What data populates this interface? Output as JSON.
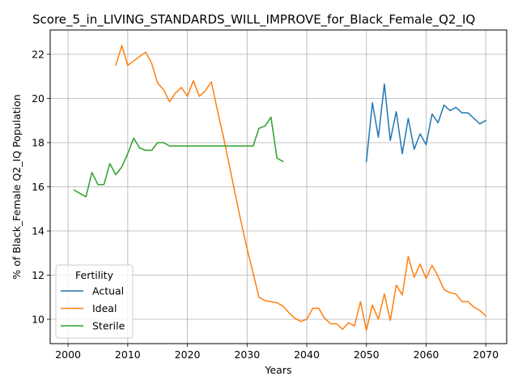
{
  "chart_data": {
    "type": "line",
    "title": "Score_5_in_LIVING_STANDARDS_WILL_IMPROVE_for_Black_Female_Q2_IQ",
    "xlabel": "Years",
    "ylabel": "% of Black_Female Q2_IQ Population",
    "xlim": [
      1997,
      2073.5
    ],
    "ylim": [
      8.9,
      23.1
    ],
    "xticks": [
      2000,
      2010,
      2020,
      2030,
      2040,
      2050,
      2060,
      2070
    ],
    "yticks": [
      10,
      12,
      14,
      16,
      18,
      20,
      22
    ],
    "grid": true,
    "legend": {
      "title": "Fertility",
      "placement": "lower-left",
      "entries": [
        "Actual",
        "Ideal",
        "Sterile"
      ]
    },
    "series": [
      {
        "name": "Actual",
        "color": "#1f77b4",
        "x": [
          2050,
          2051,
          2052,
          2053,
          2054,
          2055,
          2056,
          2057,
          2058,
          2059,
          2060,
          2061,
          2062,
          2063,
          2064,
          2065,
          2066,
          2067,
          2068,
          2069,
          2070
        ],
        "y": [
          17.15,
          19.8,
          18.25,
          20.65,
          18.1,
          19.4,
          17.5,
          19.1,
          17.7,
          18.4,
          17.9,
          19.3,
          18.9,
          19.7,
          19.45,
          19.6,
          19.35,
          19.35,
          19.1,
          18.85,
          19.0
        ]
      },
      {
        "name": "Ideal",
        "color": "#ff7f0e",
        "x": [
          2008,
          2009,
          2010,
          2011,
          2012,
          2013,
          2014,
          2015,
          2016,
          2017,
          2018,
          2019,
          2020,
          2021,
          2022,
          2023,
          2024,
          2025,
          2026,
          2027,
          2028,
          2029,
          2030,
          2031,
          2032,
          2033,
          2034,
          2035,
          2036,
          2037,
          2038,
          2039,
          2040,
          2041,
          2042,
          2043,
          2044,
          2045,
          2046,
          2047,
          2048,
          2049,
          2050,
          2051,
          2052,
          2053,
          2054,
          2055,
          2056,
          2057,
          2058,
          2059,
          2060,
          2061,
          2062,
          2063,
          2064,
          2065,
          2066,
          2067,
          2068,
          2069,
          2070
        ],
        "y": [
          21.5,
          22.4,
          21.5,
          21.7,
          21.9,
          22.1,
          21.6,
          20.7,
          20.4,
          19.85,
          20.25,
          20.5,
          20.1,
          20.8,
          20.1,
          20.35,
          20.75,
          19.5,
          18.3,
          17.0,
          15.7,
          14.4,
          13.2,
          12.1,
          11.0,
          10.85,
          10.8,
          10.75,
          10.6,
          10.3,
          10.05,
          9.9,
          10.0,
          10.5,
          10.5,
          10.05,
          9.8,
          9.8,
          9.55,
          9.85,
          9.7,
          10.8,
          9.5,
          10.65,
          10.0,
          11.15,
          9.95,
          11.55,
          11.1,
          12.85,
          11.9,
          12.5,
          11.85,
          12.45,
          11.95,
          11.35,
          11.2,
          11.15,
          10.8,
          10.8,
          10.55,
          10.4,
          10.15
        ]
      },
      {
        "name": "Sterile",
        "color": "#2ca02c",
        "x": [
          2001,
          2002,
          2003,
          2004,
          2005,
          2006,
          2007,
          2008,
          2009,
          2010,
          2011,
          2012,
          2013,
          2014,
          2015,
          2016,
          2017,
          2018,
          2019,
          2020,
          2021,
          2022,
          2023,
          2024,
          2025,
          2026,
          2027,
          2028,
          2029,
          2030,
          2031,
          2032,
          2033,
          2034,
          2035,
          2036
        ],
        "y": [
          15.85,
          15.7,
          15.55,
          16.65,
          16.1,
          16.1,
          17.05,
          16.55,
          16.9,
          17.5,
          18.2,
          17.75,
          17.65,
          17.65,
          18.0,
          18.0,
          17.85,
          17.85,
          17.85,
          17.85,
          17.85,
          17.85,
          17.85,
          17.85,
          17.85,
          17.85,
          17.85,
          17.85,
          17.85,
          17.85,
          17.85,
          18.65,
          18.75,
          19.15,
          17.3,
          17.15
        ]
      }
    ]
  }
}
